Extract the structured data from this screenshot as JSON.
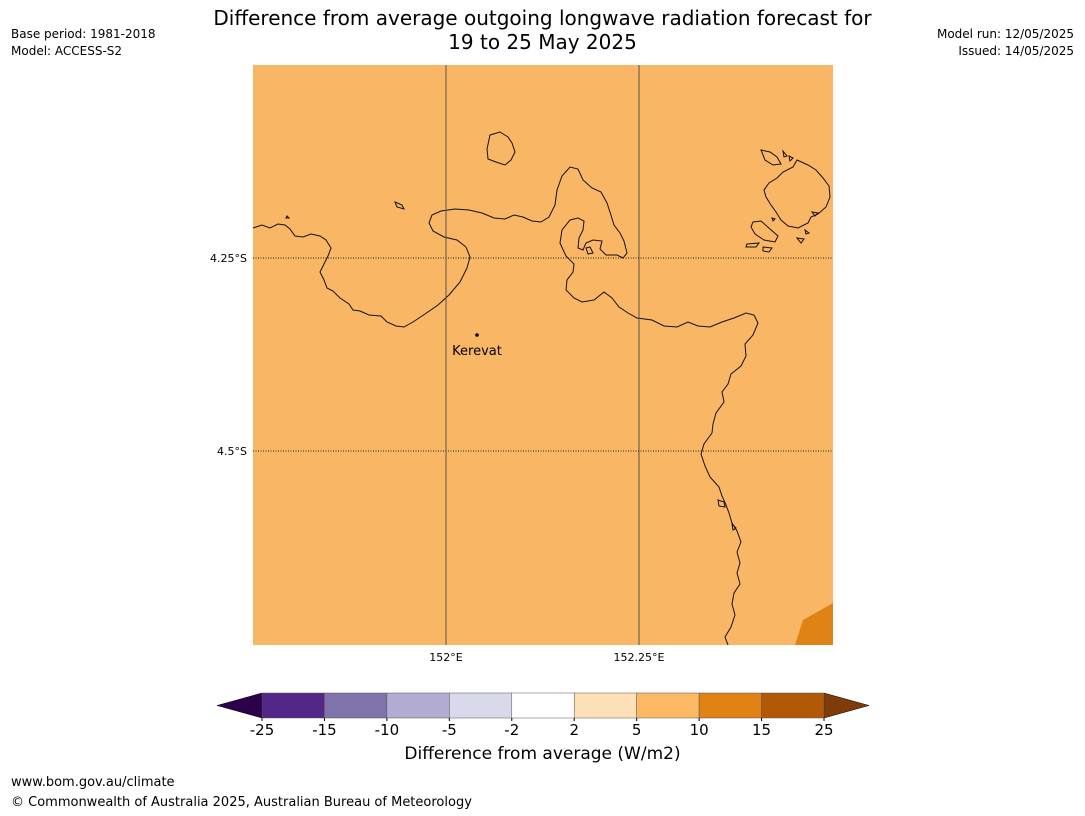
{
  "title_line1": "Difference from average outgoing longwave radiation forecast for",
  "title_line2": "19 to 25 May 2025",
  "meta_left": {
    "base_period": "Base period: 1981-2018",
    "model": "Model: ACCESS-S2"
  },
  "meta_right": {
    "model_run": "Model run: 12/05/2025",
    "issued": "Issued: 14/05/2025"
  },
  "map": {
    "base_color": "#f9b664",
    "corner_patch_color": "#e08317",
    "lat_labels": [
      "4.25°S",
      "4.5°S"
    ],
    "lon_labels": [
      "152°E",
      "152.25°E"
    ],
    "place": {
      "name": "Kerevat"
    }
  },
  "colorbar": {
    "ticks": [
      "-25",
      "-15",
      "-10",
      "-5",
      "-2",
      "2",
      "5",
      "10",
      "15",
      "25"
    ],
    "segment_colors": [
      "#542688",
      "#8073ac",
      "#b2abd2",
      "#d8daeb",
      "#ffffff",
      "#fee0b6",
      "#fdb863",
      "#e08214",
      "#b35806"
    ],
    "under_color": "#2d004b",
    "over_color": "#7f3b08",
    "label": "Difference from average (W/m2)"
  },
  "footer": {
    "url": "www.bom.gov.au/climate",
    "copyright": "© Commonwealth of Australia 2025, Australian Bureau of Meteorology"
  }
}
